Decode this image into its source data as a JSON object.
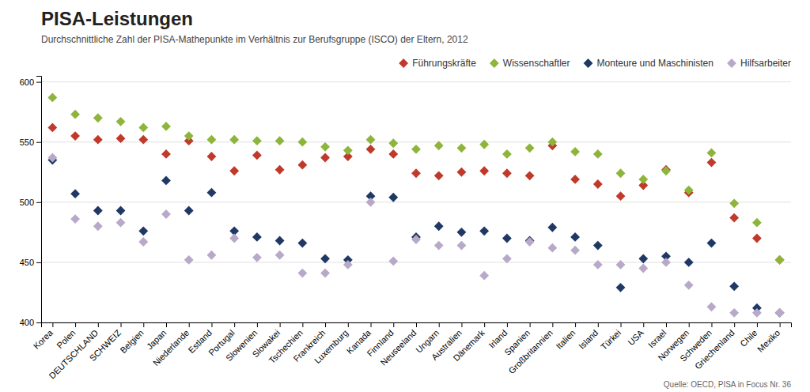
{
  "chart_data": {
    "type": "scatter",
    "title": "PISA-Leistungen",
    "subtitle": "Durchschnittliche Zahl der PISA-Mathepunkte im Verhältnis zur Berufsgruppe (ISCO) der Eltern, 2012",
    "source": "Quelle: OECD, PISA in Focus Nr. 36",
    "categories": [
      "Korea",
      "Polen",
      "DEUTSCHLAND",
      "SCHWEIZ",
      "Belgien",
      "Japan",
      "Niederlande",
      "Estland",
      "Portugal",
      "Slowenien",
      "Slowakei",
      "Tschechien",
      "Frankreich",
      "Luxemburg",
      "Kanada",
      "Finnland",
      "Neuseeland",
      "Ungarn",
      "Australien",
      "Dänemark",
      "Irland",
      "Spanien",
      "Großbritannien",
      "Italien",
      "Island",
      "Türkei",
      "USA",
      "Israel",
      "Norwegen",
      "Schweden",
      "Griechenland",
      "Chile",
      "Mexiko"
    ],
    "series": [
      {
        "name": "Führungskräfte",
        "color": "#c0392b",
        "values": [
          562,
          555,
          552,
          553,
          552,
          540,
          551,
          538,
          526,
          539,
          527,
          531,
          537,
          538,
          544,
          540,
          524,
          522,
          525,
          526,
          524,
          522,
          547,
          519,
          515,
          505,
          514,
          527,
          508,
          533,
          487,
          470,
          452
        ]
      },
      {
        "name": "Wissenschaftler",
        "color": "#8db53a",
        "values": [
          587,
          573,
          570,
          567,
          562,
          563,
          555,
          552,
          552,
          551,
          551,
          550,
          546,
          543,
          552,
          549,
          544,
          547,
          545,
          548,
          540,
          545,
          550,
          542,
          540,
          524,
          519,
          526,
          510,
          541,
          499,
          483,
          452
        ]
      },
      {
        "name": "Monteure und Maschinisten",
        "color": "#1f3864",
        "values": [
          535,
          507,
          493,
          493,
          476,
          518,
          493,
          508,
          476,
          471,
          468,
          466,
          453,
          452,
          505,
          504,
          471,
          480,
          475,
          476,
          470,
          468,
          479,
          471,
          464,
          429,
          453,
          455,
          450,
          466,
          430,
          412,
          408
        ]
      },
      {
        "name": "Hilfsarbeiter",
        "color": "#b8a9c9",
        "values": [
          537,
          486,
          480,
          483,
          467,
          490,
          452,
          456,
          470,
          454,
          456,
          441,
          441,
          448,
          500,
          451,
          469,
          464,
          464,
          439,
          453,
          467,
          462,
          460,
          448,
          448,
          445,
          450,
          431,
          413,
          408,
          408,
          408
        ]
      }
    ],
    "ylim": [
      400,
      605
    ],
    "yticks": [
      400,
      450,
      500,
      550,
      600
    ],
    "grid": true,
    "legend": "upper right",
    "marker": "diamond"
  }
}
